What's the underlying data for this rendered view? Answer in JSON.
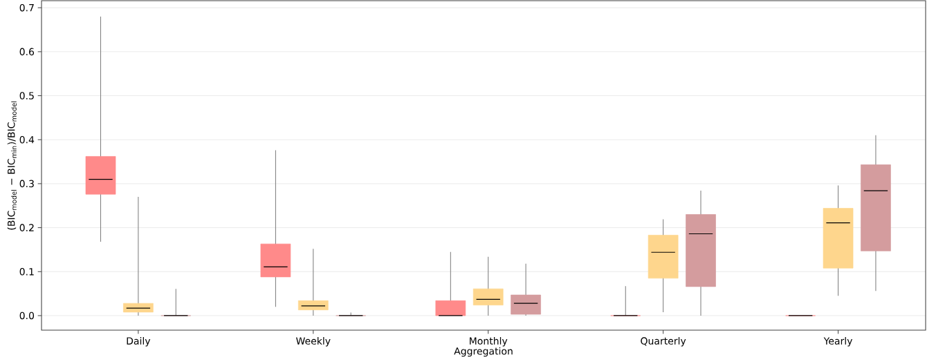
{
  "chart_data": {
    "type": "box",
    "xlabel": "Aggregation",
    "ylabel": "(BIC$_{model}$ − BIC$_{min}$)/BIC$_{model}$",
    "categories": [
      "Daily",
      "Weekly",
      "Monthly",
      "Quarterly",
      "Yearly"
    ],
    "series": [
      {
        "color": "#ff8a8a",
        "boxes": [
          {
            "low": 0.168,
            "q1": 0.276,
            "median": 0.31,
            "q3": 0.362,
            "high": 0.68
          },
          {
            "low": 0.02,
            "q1": 0.088,
            "median": 0.111,
            "q3": 0.163,
            "high": 0.376
          },
          {
            "low": 0,
            "q1": 0,
            "median": 0,
            "q3": 0.034,
            "high": 0.145
          },
          {
            "low": 0,
            "q1": 0,
            "median": 0,
            "q3": 0,
            "high": 0.067
          },
          {
            "low": 0,
            "q1": 0,
            "median": 0,
            "q3": 0,
            "high": 0
          }
        ]
      },
      {
        "color": "#fed68d",
        "boxes": [
          {
            "low": 0,
            "q1": 0.008,
            "median": 0.017,
            "q3": 0.028,
            "high": 0.27
          },
          {
            "low": 0,
            "q1": 0.013,
            "median": 0.022,
            "q3": 0.034,
            "high": 0.152
          },
          {
            "low": 0,
            "q1": 0.024,
            "median": 0.037,
            "q3": 0.061,
            "high": 0.134
          },
          {
            "low": 0.008,
            "q1": 0.085,
            "median": 0.144,
            "q3": 0.183,
            "high": 0.219
          },
          {
            "low": 0.045,
            "q1": 0.108,
            "median": 0.211,
            "q3": 0.244,
            "high": 0.296
          }
        ]
      },
      {
        "color": "#d49c9e",
        "boxes": [
          {
            "low": 0,
            "q1": 0,
            "median": 0,
            "q3": 0,
            "high": 0.061
          },
          {
            "low": 0,
            "q1": 0,
            "median": 0,
            "q3": 0,
            "high": 0.007
          },
          {
            "low": 0,
            "q1": 0.003,
            "median": 0.028,
            "q3": 0.047,
            "high": 0.118
          },
          {
            "low": 0,
            "q1": 0.066,
            "median": 0.186,
            "q3": 0.23,
            "high": 0.284
          },
          {
            "low": 0.056,
            "q1": 0.147,
            "median": 0.284,
            "q3": 0.343,
            "high": 0.41
          }
        ]
      }
    ],
    "ylim": [
      -0.033,
      0.716
    ],
    "yticks": [
      {
        "value": 0,
        "label": "0.0"
      },
      {
        "value": 0.1,
        "label": "0.1"
      },
      {
        "value": 0.2,
        "label": "0.2"
      },
      {
        "value": 0.3,
        "label": "0.3"
      },
      {
        "value": 0.4,
        "label": "0.4"
      },
      {
        "value": 0.5,
        "label": "0.5"
      },
      {
        "value": 0.6,
        "label": "0.6"
      },
      {
        "value": 0.7,
        "label": "0.7"
      }
    ],
    "grid": "y"
  }
}
